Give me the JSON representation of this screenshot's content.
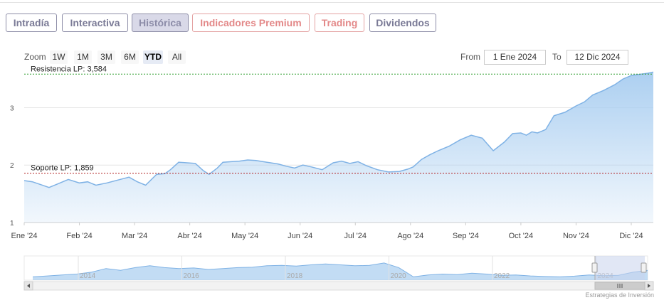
{
  "tabs": [
    {
      "label": "Intradía",
      "state": "normal"
    },
    {
      "label": "Interactiva",
      "state": "normal"
    },
    {
      "label": "Histórica",
      "state": "active"
    },
    {
      "label": "Indicadores Premium",
      "state": "premium"
    },
    {
      "label": "Trading",
      "state": "premium"
    },
    {
      "label": "Dividendos",
      "state": "normal"
    }
  ],
  "zoom": {
    "label": "Zoom",
    "buttons": [
      "1W",
      "1M",
      "3M",
      "6M",
      "YTD",
      "All"
    ],
    "selected": "YTD"
  },
  "range": {
    "from_label": "From",
    "from_value": "1 Ene 2024",
    "to_label": "To",
    "to_value": "12 Dic 2024"
  },
  "credit": "Estrategias de Inversión",
  "colors": {
    "line": "#7fb2e5",
    "fill": "#a8cdf0",
    "resistance": "#2e9d2e",
    "support": "#b02020",
    "tab_border": "#8e8ea8",
    "premium": "#e38888"
  },
  "chart_data": {
    "type": "area",
    "yticks": [
      "1",
      "2",
      "3"
    ],
    "ylim": [
      1,
      3.6
    ],
    "xlim": [
      0,
      11.4
    ],
    "months": [
      "Ene '24",
      "Feb '24",
      "Mar '24",
      "Abr '24",
      "May '24",
      "Jun '24",
      "Jul '24",
      "Ago '24",
      "Sep '24",
      "Oct '24",
      "Nov '24",
      "Dic '24"
    ],
    "x": [
      0,
      0.15,
      0.3,
      0.45,
      0.6,
      0.8,
      1.0,
      1.15,
      1.3,
      1.5,
      1.7,
      1.9,
      2.05,
      2.2,
      2.4,
      2.55,
      2.65,
      2.8,
      2.95,
      3.1,
      3.25,
      3.35,
      3.5,
      3.6,
      3.75,
      3.9,
      4.05,
      4.2,
      4.4,
      4.6,
      4.75,
      4.9,
      5.05,
      5.2,
      5.4,
      5.6,
      5.75,
      5.9,
      6.05,
      6.2,
      6.4,
      6.6,
      6.8,
      6.95,
      7.05,
      7.2,
      7.35,
      7.5,
      7.7,
      7.9,
      8.1,
      8.3,
      8.5,
      8.7,
      8.85,
      9.0,
      9.1,
      9.2,
      9.3,
      9.45,
      9.6,
      9.8,
      10.0,
      10.15,
      10.3,
      10.5,
      10.7,
      10.85,
      11.0,
      11.15,
      11.3,
      11.4
    ],
    "values": [
      1.73,
      1.71,
      1.66,
      1.61,
      1.67,
      1.75,
      1.69,
      1.71,
      1.65,
      1.69,
      1.74,
      1.79,
      1.71,
      1.65,
      1.84,
      1.85,
      1.92,
      2.05,
      2.04,
      2.03,
      1.9,
      1.84,
      1.95,
      2.05,
      2.06,
      2.07,
      2.09,
      2.08,
      2.05,
      2.02,
      1.98,
      1.95,
      2.0,
      1.97,
      1.92,
      2.04,
      2.07,
      2.03,
      2.06,
      1.99,
      1.92,
      1.88,
      1.89,
      1.93,
      1.97,
      2.1,
      2.18,
      2.25,
      2.33,
      2.44,
      2.52,
      2.47,
      2.25,
      2.4,
      2.55,
      2.56,
      2.52,
      2.58,
      2.56,
      2.62,
      2.86,
      2.92,
      3.03,
      3.1,
      3.22,
      3.3,
      3.4,
      3.5,
      3.56,
      3.58,
      3.6,
      3.62
    ],
    "annotations": [
      {
        "label": "Resistencia LP: 3,584",
        "value": 3.584
      },
      {
        "label": "Soporte LP: 1,859",
        "value": 1.859
      }
    ],
    "navigator": {
      "years": [
        "2014",
        "2016",
        "2018",
        "2020",
        "2022",
        "2024"
      ]
    },
    "grid": true,
    "legend": "none"
  }
}
